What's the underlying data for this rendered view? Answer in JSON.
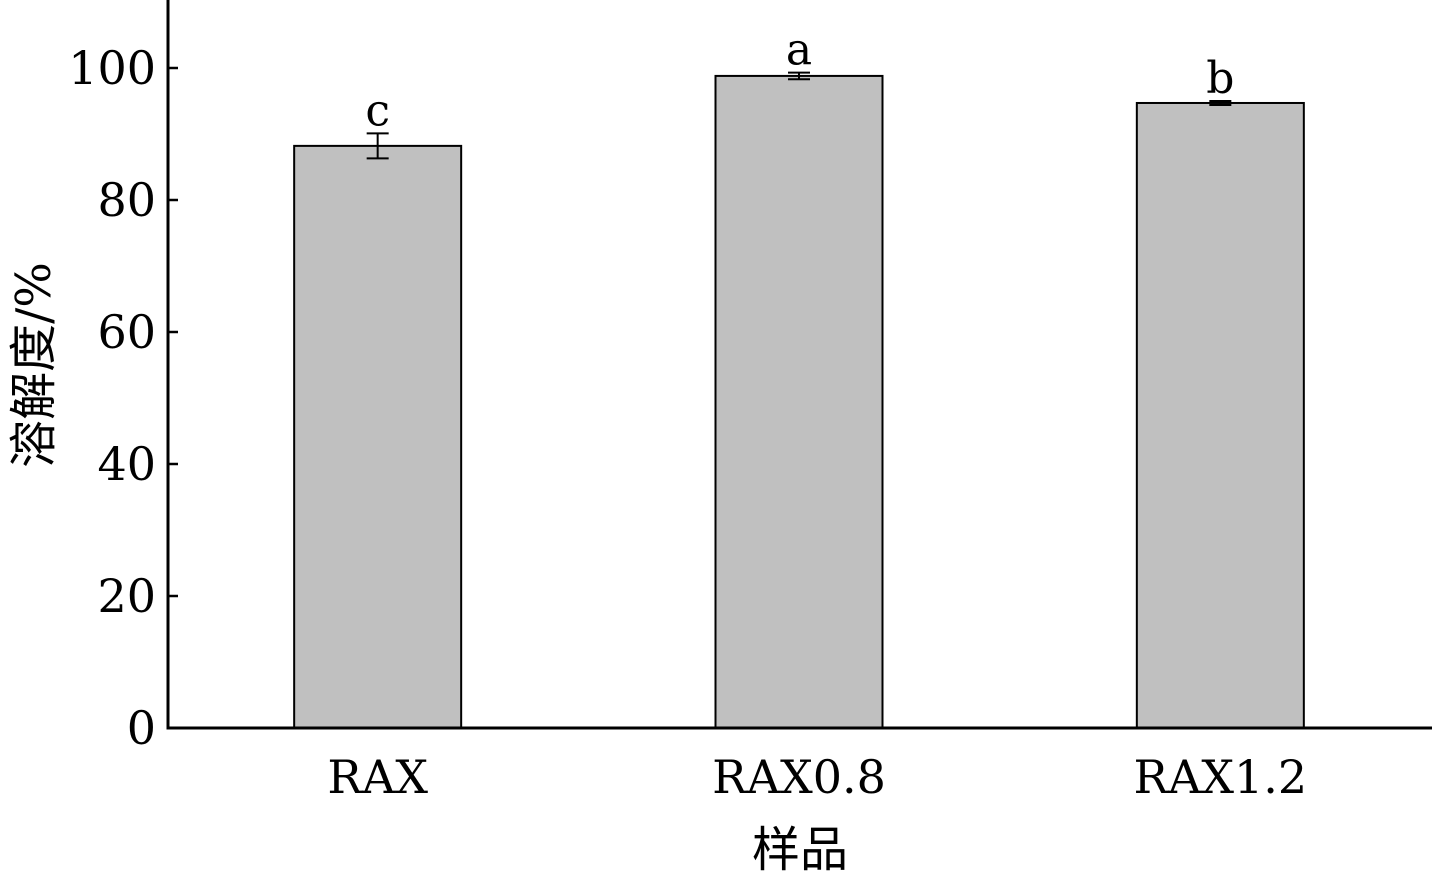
{
  "chart_data": {
    "type": "bar",
    "title": "",
    "xlabel": "样品",
    "ylabel": "溶解度/%",
    "categories": [
      "RAX",
      "RAX0.8",
      "RAX1.2"
    ],
    "values": [
      88.2,
      98.8,
      94.7
    ],
    "errors": [
      1.9,
      0.5,
      0.3
    ],
    "significance_letters": [
      "c",
      "a",
      "b"
    ],
    "y_ticks": [
      "0",
      "20",
      "40",
      "60",
      "80",
      "100"
    ],
    "ylim": [
      0,
      110
    ],
    "grid": false,
    "legend": "none",
    "bar_color": "#c0c0c0",
    "bar_edge_color": "#000000"
  }
}
